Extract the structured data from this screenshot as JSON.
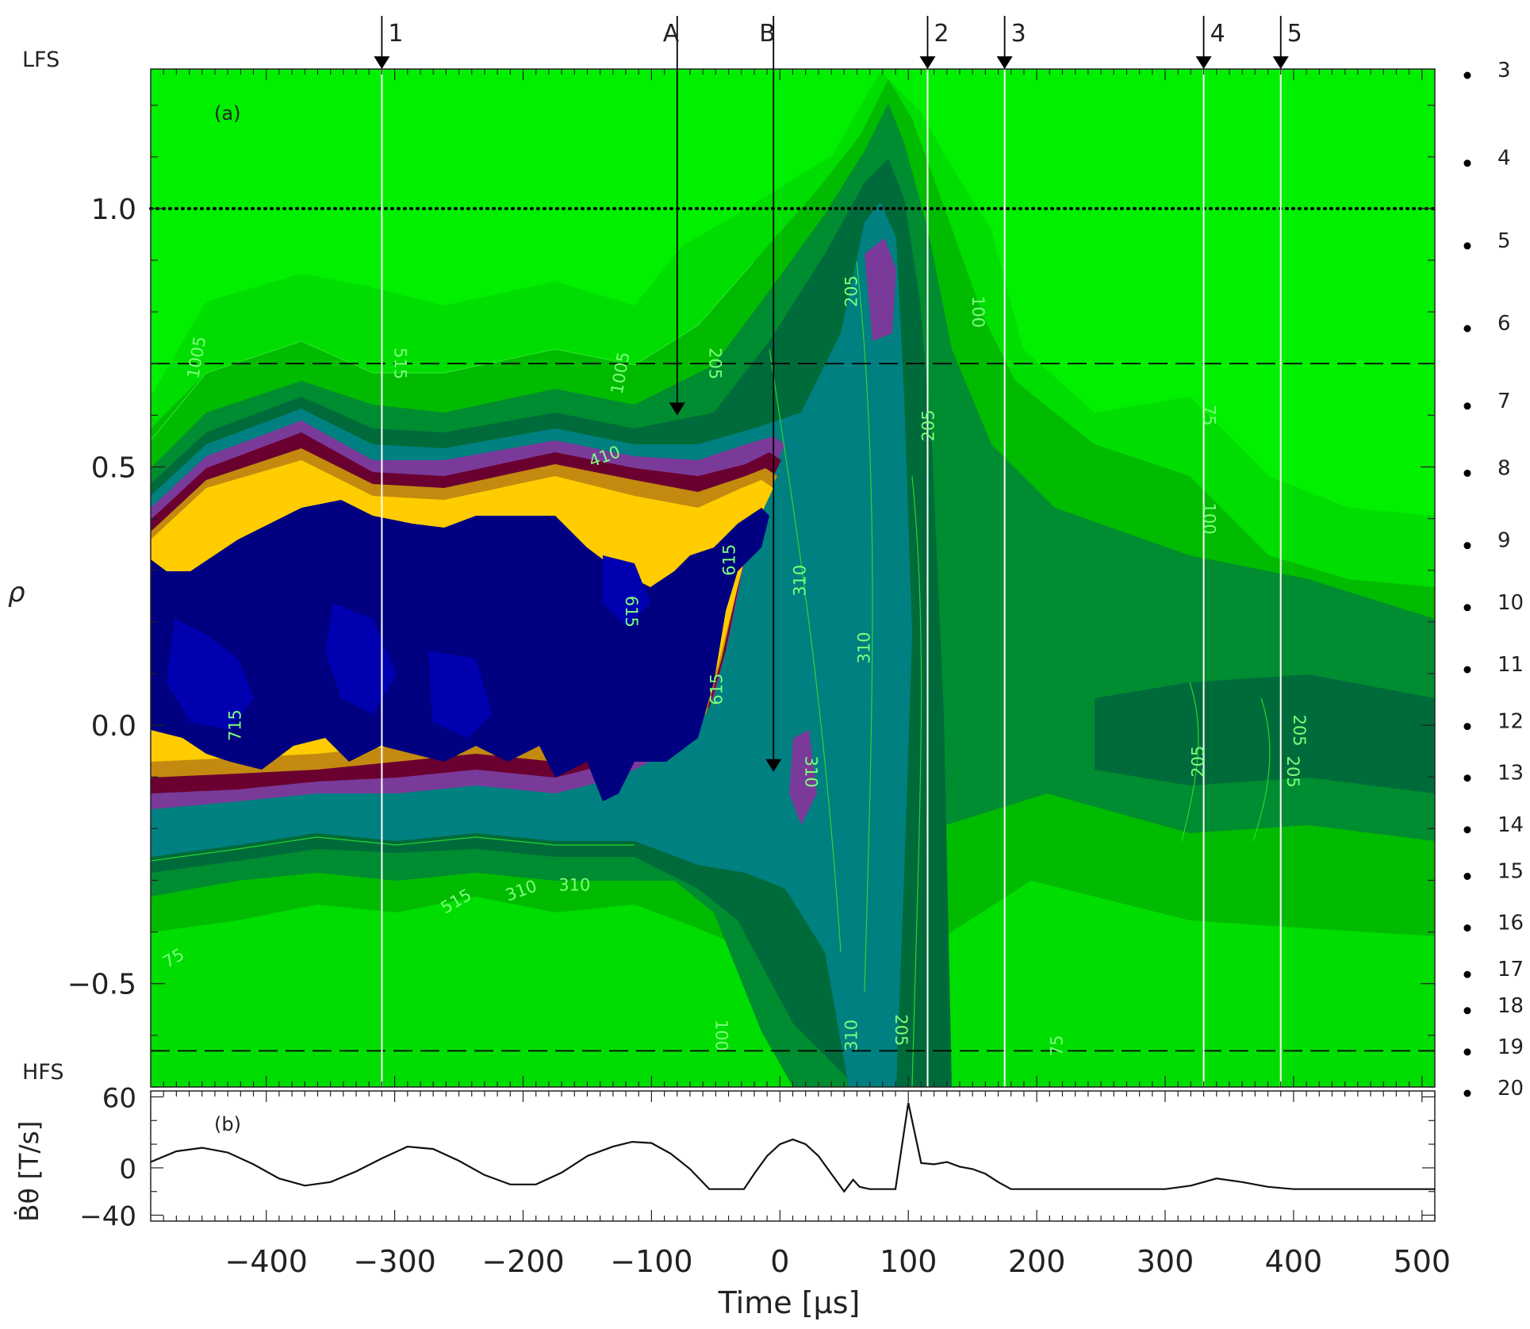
{
  "chart_data": [
    {
      "panel_label": "(a)",
      "type": "heatmap",
      "xlim": [
        -490,
        510
      ],
      "ylim": [
        -0.7,
        1.27
      ],
      "ylabel": "ρ",
      "yticks": [
        {
          "value": 1.0,
          "label": "1.0"
        },
        {
          "value": 0.5,
          "label": "0.5"
        },
        {
          "value": 0.0,
          "label": "0.0"
        },
        {
          "value": -0.5,
          "label": "−0.5"
        }
      ],
      "side_labels": {
        "top": "LFS",
        "bottom": "HFS"
      },
      "event_markers": [
        {
          "label": "1",
          "t": -310,
          "vertical_line": true
        },
        {
          "label": "A",
          "t": -80,
          "rho": 0.6,
          "vertical_line": false
        },
        {
          "label": "B",
          "t": -5,
          "rho": -0.09,
          "vertical_line": false
        },
        {
          "label": "2",
          "t": 115,
          "vertical_line": true
        },
        {
          "label": "3",
          "t": 175,
          "vertical_line": true
        },
        {
          "label": "4",
          "t": 330,
          "vertical_line": true
        },
        {
          "label": "5",
          "t": 390,
          "vertical_line": true
        }
      ],
      "reference_lines": [
        {
          "rho": 1.0,
          "style": "dotted"
        },
        {
          "rho": 0.7,
          "style": "dashed"
        },
        {
          "rho": -0.63,
          "style": "dashed"
        }
      ],
      "channels": [
        {
          "label": "3",
          "rho": 1.27
        },
        {
          "label": "4",
          "rho": 1.1
        },
        {
          "label": "5",
          "rho": 0.94
        },
        {
          "label": "6",
          "rho": 0.78
        },
        {
          "label": "7",
          "rho": 0.63
        },
        {
          "label": "8",
          "rho": 0.5
        },
        {
          "label": "9",
          "rho": 0.36
        },
        {
          "label": "10",
          "rho": 0.24
        },
        {
          "label": "11",
          "rho": 0.12
        },
        {
          "label": "12",
          "rho": 0.01
        },
        {
          "label": "13",
          "rho": -0.09
        },
        {
          "label": "14",
          "rho": -0.19
        },
        {
          "label": "15",
          "rho": -0.28
        },
        {
          "label": "16",
          "rho": -0.38
        },
        {
          "label": "17",
          "rho": -0.47
        },
        {
          "label": "18",
          "rho": -0.54
        },
        {
          "label": "19",
          "rho": -0.62
        },
        {
          "label": "20",
          "rho": -0.7
        }
      ],
      "contour_levels": [
        "75",
        "100",
        "205",
        "310",
        "410",
        "515",
        "615",
        "715",
        "1005"
      ],
      "colors": {
        "background": "#00f000",
        "level_1": "#00dd00",
        "level_2": "#00bb00",
        "level_3": "#008c30",
        "level_4": "#006b3a",
        "level_5": "#008080",
        "level_6": "#7a3a9a",
        "level_7": "#6a0030",
        "level_8": "#c48a10",
        "level_9": "#ffcc00",
        "core": "#000080",
        "core_inner": "#0000b0"
      }
    },
    {
      "panel_label": "(b)",
      "type": "line",
      "xlabel": "Time [μs]",
      "ylabel": "Ḃθ [T/s]",
      "xlim": [
        -490,
        510
      ],
      "ylim": [
        -45,
        65
      ],
      "xticks": [
        "−400",
        "−300",
        "−200",
        "−100",
        "0",
        "100",
        "200",
        "300",
        "400",
        "500"
      ],
      "yticks": [
        {
          "value": 60,
          "label": "60"
        },
        {
          "value": 0,
          "label": "0"
        },
        {
          "value": -40,
          "label": "−40"
        }
      ],
      "series": [
        {
          "x": [
            -490,
            -470,
            -450,
            -430,
            -410,
            -390,
            -370,
            -350,
            -330,
            -310,
            -290,
            -270,
            -250,
            -230,
            -210,
            -190,
            -170,
            -150,
            -130,
            -115,
            -100,
            -85,
            -70,
            -55,
            -45,
            -35,
            -28,
            -20,
            -10,
            0,
            10,
            20,
            30,
            40,
            50,
            57,
            62,
            70,
            80,
            90,
            100,
            110,
            120,
            130,
            140,
            150,
            160,
            170,
            180,
            200,
            250,
            300,
            320,
            340,
            360,
            380,
            400,
            450,
            500,
            510
          ],
          "y": [
            5,
            14,
            17,
            13,
            3,
            -9,
            -15,
            -12,
            -3,
            8,
            18,
            16,
            6,
            -6,
            -14,
            -14,
            -4,
            10,
            18,
            22,
            21,
            12,
            -1,
            -18,
            -18,
            -18,
            -18,
            -5,
            10,
            20,
            24,
            20,
            10,
            -5,
            -20,
            -10,
            -16,
            -18,
            -18,
            -18,
            55,
            4,
            3,
            5,
            1,
            -1,
            -5,
            -12,
            -18,
            -18,
            -18,
            -18,
            -15,
            -9,
            -12,
            -16,
            -18,
            -18,
            -18,
            -18
          ]
        }
      ]
    }
  ]
}
